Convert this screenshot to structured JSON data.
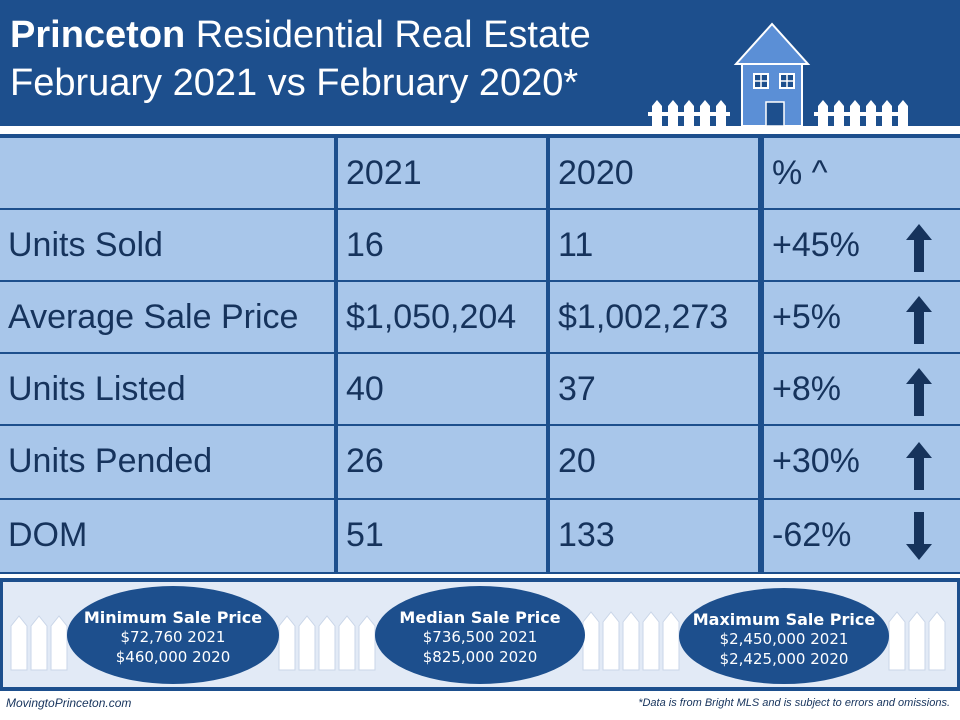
{
  "header": {
    "title_bold": "Princeton",
    "title_rest": " Residential Real Estate",
    "subtitle": "February 2021 vs February 2020*"
  },
  "table": {
    "columns": [
      "",
      "2021",
      "2020",
      "% ^"
    ],
    "rows": [
      {
        "label": "Units Sold",
        "v2021": "16",
        "v2020": "11",
        "pct": "+45%",
        "direction": "up"
      },
      {
        "label": "Average Sale Price",
        "v2021": "$1,050,204",
        "v2020": "$1,002,273",
        "pct": "+5%",
        "direction": "up"
      },
      {
        "label": "Units Listed",
        "v2021": "40",
        "v2020": "37",
        "pct": "+8%",
        "direction": "up"
      },
      {
        "label": "Units Pended",
        "v2021": "26",
        "v2020": "20",
        "pct": "+30%",
        "direction": "up"
      },
      {
        "label": "DOM",
        "v2021": "51",
        "v2020": "133",
        "pct": "-62%",
        "direction": "down"
      }
    ]
  },
  "summary": {
    "min": {
      "title": "Minimum Sale Price",
      "line1": "$72,760  2021",
      "line2": "$460,000  2020"
    },
    "median": {
      "title": "Median Sale Price",
      "line1": "$736,500 2021",
      "line2": "$825,000 2020"
    },
    "max": {
      "title": "Maximum Sale Price",
      "line1": "$2,450,000 2021",
      "line2": "$2,425,000 2020"
    }
  },
  "footer": {
    "site": "MovingtoPrinceton.com",
    "disclaimer": "*Data is from Bright MLS and is subject to errors and omissions."
  },
  "colors": {
    "navy": "#1d4f8d",
    "cell": "#a8c6ea",
    "text": "#16335c",
    "house": "#5b8fd6"
  },
  "icons": [
    "house-icon",
    "arrow-up-icon",
    "arrow-down-icon",
    "picket-fence-icon"
  ]
}
